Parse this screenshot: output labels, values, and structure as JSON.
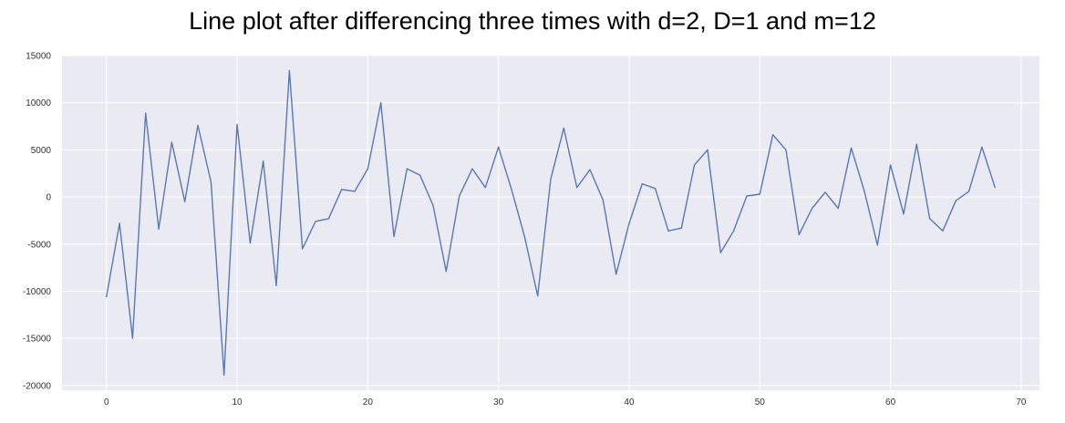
{
  "chart_data": {
    "type": "line",
    "title": "Line plot after differencing three times with d=2, D=1 and m=12",
    "xlabel": "",
    "ylabel": "",
    "xlim": [
      -3.4,
      71.4
    ],
    "ylim": [
      -20500,
      15000
    ],
    "xticks": [
      0,
      10,
      20,
      30,
      40,
      50,
      60,
      70
    ],
    "yticks": [
      -20000,
      -15000,
      -10000,
      -5000,
      0,
      5000,
      10000,
      15000
    ],
    "grid": true,
    "series": [
      {
        "color": "#5a78b4",
        "x": [
          0,
          1,
          2,
          3,
          4,
          5,
          6,
          7,
          8,
          9,
          10,
          11,
          12,
          13,
          14,
          15,
          16,
          17,
          18,
          19,
          20,
          21,
          22,
          23,
          24,
          25,
          26,
          27,
          28,
          29,
          30,
          31,
          32,
          33,
          34,
          35,
          36,
          37,
          38,
          39,
          40,
          41,
          42,
          43,
          44,
          45,
          46,
          47,
          48,
          49,
          50,
          51,
          52,
          53,
          54,
          55,
          56,
          57,
          58,
          59,
          60,
          61,
          62,
          63,
          64,
          65,
          66,
          67,
          68
        ],
        "values": [
          -10600,
          -2800,
          -15000,
          8900,
          -3400,
          5800,
          -500,
          7600,
          1600,
          -18900,
          7700,
          -4900,
          3800,
          -9400,
          13400,
          -5500,
          -2600,
          -2300,
          800,
          600,
          3000,
          10000,
          -4200,
          3000,
          2300,
          -900,
          -7900,
          100,
          3000,
          1000,
          5300,
          800,
          -4200,
          -10500,
          1900,
          7300,
          1000,
          2900,
          -300,
          -8200,
          -2800,
          1400,
          900,
          -3600,
          -3300,
          3400,
          5000,
          -5900,
          -3600,
          100,
          300,
          6600,
          5000,
          -4000,
          -1200,
          500,
          -1200,
          5200,
          600,
          -5100,
          3400,
          -1800,
          5600,
          -2300,
          -3600,
          -400,
          600,
          5300,
          1000
        ]
      }
    ]
  }
}
